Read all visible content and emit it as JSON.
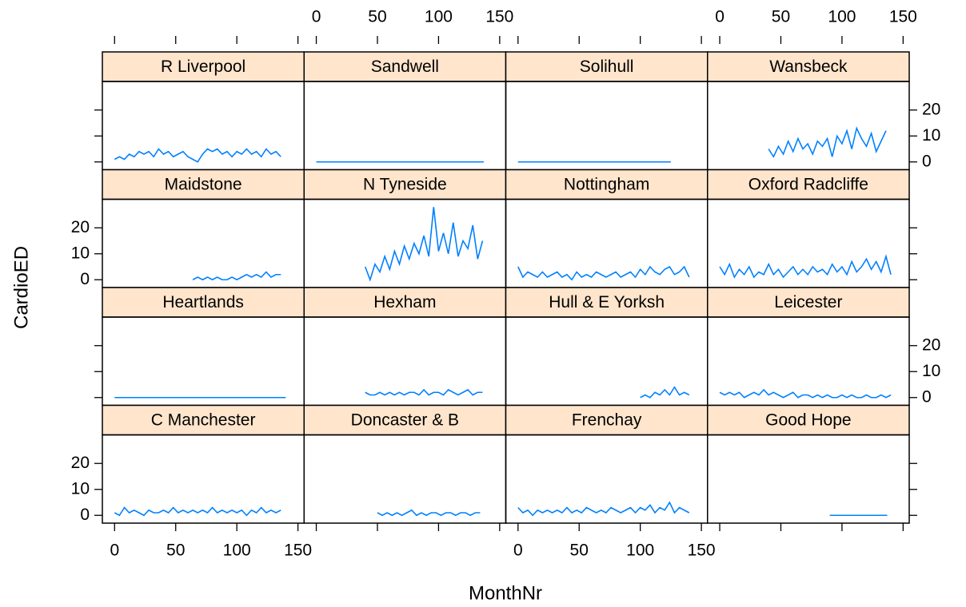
{
  "xlabel": "MonthNr",
  "ylabel": "CardioED",
  "chart_data": [
    {
      "type": "line",
      "title": "R Liverpool",
      "color": "#0080ff",
      "xlim": [
        -10,
        155
      ],
      "ylim": [
        -3,
        31
      ],
      "xticks": [
        0,
        50,
        100,
        150
      ],
      "yticks": [
        0,
        10,
        20
      ],
      "x": [
        0,
        4,
        8,
        12,
        16,
        20,
        24,
        28,
        32,
        36,
        40,
        44,
        48,
        52,
        56,
        60,
        64,
        68,
        72,
        76,
        80,
        84,
        88,
        92,
        96,
        100,
        104,
        108,
        112,
        116,
        120,
        124,
        128,
        132,
        136
      ],
      "values": [
        1,
        2,
        1,
        3,
        2,
        4,
        3,
        4,
        2,
        5,
        3,
        4,
        2,
        3,
        4,
        2,
        1,
        0,
        3,
        5,
        4,
        5,
        3,
        4,
        2,
        4,
        3,
        5,
        3,
        4,
        2,
        5,
        3,
        4,
        2
      ]
    },
    {
      "type": "line",
      "title": "Sandwell",
      "color": "#0080ff",
      "xlim": [
        -10,
        155
      ],
      "ylim": [
        -3,
        31
      ],
      "xticks": [
        0,
        50,
        100,
        150
      ],
      "yticks": [
        0,
        10,
        20
      ],
      "x": [
        0,
        137
      ],
      "values": [
        0,
        0
      ]
    },
    {
      "type": "line",
      "title": "Solihull",
      "color": "#0080ff",
      "xlim": [
        -10,
        155
      ],
      "ylim": [
        -3,
        31
      ],
      "xticks": [
        0,
        50,
        100,
        150
      ],
      "yticks": [
        0,
        10,
        20
      ],
      "x": [
        0,
        125
      ],
      "values": [
        0,
        0
      ]
    },
    {
      "type": "line",
      "title": "Wansbeck",
      "color": "#0080ff",
      "xlim": [
        -10,
        155
      ],
      "ylim": [
        -3,
        31
      ],
      "xticks": [
        0,
        50,
        100,
        150
      ],
      "yticks": [
        0,
        10,
        20
      ],
      "x": [
        40,
        44,
        48,
        52,
        56,
        60,
        64,
        68,
        72,
        76,
        80,
        84,
        88,
        92,
        96,
        100,
        104,
        108,
        112,
        116,
        120,
        124,
        128,
        132,
        136
      ],
      "values": [
        5,
        2,
        6,
        3,
        8,
        4,
        9,
        5,
        7,
        3,
        8,
        6,
        9,
        2,
        10,
        7,
        12,
        5,
        13,
        9,
        6,
        11,
        4,
        8,
        12
      ]
    },
    {
      "type": "line",
      "title": "Maidstone",
      "color": "#0080ff",
      "xlim": [
        -10,
        155
      ],
      "ylim": [
        -3,
        31
      ],
      "xticks": [
        0,
        50,
        100,
        150
      ],
      "yticks": [
        0,
        10,
        20
      ],
      "x": [
        64,
        68,
        72,
        76,
        80,
        84,
        88,
        92,
        96,
        100,
        104,
        108,
        112,
        116,
        120,
        124,
        128,
        132,
        136
      ],
      "values": [
        0,
        1,
        0,
        1,
        0,
        1,
        0,
        0,
        1,
        0,
        1,
        2,
        1,
        2,
        1,
        3,
        1,
        2,
        2
      ]
    },
    {
      "type": "line",
      "title": "N Tyneside",
      "color": "#0080ff",
      "xlim": [
        -10,
        155
      ],
      "ylim": [
        -3,
        31
      ],
      "xticks": [
        0,
        50,
        100,
        150
      ],
      "yticks": [
        0,
        10,
        20
      ],
      "x": [
        40,
        44,
        48,
        52,
        56,
        60,
        64,
        68,
        72,
        76,
        80,
        84,
        88,
        92,
        96,
        100,
        104,
        108,
        112,
        116,
        120,
        124,
        128,
        132,
        136
      ],
      "values": [
        5,
        0,
        6,
        3,
        9,
        4,
        11,
        6,
        13,
        8,
        14,
        10,
        17,
        9,
        28,
        11,
        18,
        10,
        22,
        9,
        15,
        12,
        21,
        8,
        15
      ]
    },
    {
      "type": "line",
      "title": "Nottingham",
      "color": "#0080ff",
      "xlim": [
        -10,
        155
      ],
      "ylim": [
        -3,
        31
      ],
      "xticks": [
        0,
        50,
        100,
        150
      ],
      "yticks": [
        0,
        10,
        20
      ],
      "x": [
        0,
        4,
        8,
        12,
        16,
        20,
        24,
        28,
        32,
        36,
        40,
        44,
        48,
        52,
        56,
        60,
        64,
        68,
        72,
        76,
        80,
        84,
        88,
        92,
        96,
        100,
        104,
        108,
        112,
        116,
        120,
        124,
        128,
        132,
        136,
        140
      ],
      "values": [
        5,
        1,
        3,
        2,
        1,
        3,
        1,
        2,
        3,
        1,
        2,
        0,
        3,
        1,
        2,
        1,
        3,
        2,
        1,
        2,
        3,
        1,
        2,
        3,
        1,
        4,
        2,
        5,
        3,
        2,
        4,
        5,
        2,
        3,
        5,
        1
      ]
    },
    {
      "type": "line",
      "title": "Oxford Radcliffe",
      "color": "#0080ff",
      "xlim": [
        -10,
        155
      ],
      "ylim": [
        -3,
        31
      ],
      "xticks": [
        0,
        50,
        100,
        150
      ],
      "yticks": [
        0,
        10,
        20
      ],
      "x": [
        0,
        4,
        8,
        12,
        16,
        20,
        24,
        28,
        32,
        36,
        40,
        44,
        48,
        52,
        56,
        60,
        64,
        68,
        72,
        76,
        80,
        84,
        88,
        92,
        96,
        100,
        104,
        108,
        112,
        116,
        120,
        124,
        128,
        132,
        136,
        140
      ],
      "values": [
        5,
        2,
        6,
        1,
        4,
        2,
        5,
        1,
        3,
        2,
        6,
        2,
        4,
        1,
        3,
        5,
        2,
        4,
        2,
        5,
        3,
        4,
        2,
        6,
        3,
        5,
        2,
        7,
        3,
        5,
        8,
        4,
        7,
        3,
        9,
        2
      ]
    },
    {
      "type": "line",
      "title": "Heartlands",
      "color": "#0080ff",
      "xlim": [
        -10,
        155
      ],
      "ylim": [
        -3,
        31
      ],
      "xticks": [
        0,
        50,
        100,
        150
      ],
      "yticks": [
        0,
        10,
        20
      ],
      "x": [
        0,
        140
      ],
      "values": [
        0,
        0
      ]
    },
    {
      "type": "line",
      "title": "Hexham",
      "color": "#0080ff",
      "xlim": [
        -10,
        155
      ],
      "ylim": [
        -3,
        31
      ],
      "xticks": [
        0,
        50,
        100,
        150
      ],
      "yticks": [
        0,
        10,
        20
      ],
      "x": [
        40,
        44,
        48,
        52,
        56,
        60,
        64,
        68,
        72,
        76,
        80,
        84,
        88,
        92,
        96,
        100,
        104,
        108,
        112,
        116,
        120,
        124,
        128,
        132,
        136
      ],
      "values": [
        2,
        1,
        1,
        2,
        1,
        2,
        1,
        2,
        1,
        2,
        2,
        1,
        3,
        1,
        2,
        2,
        1,
        3,
        2,
        1,
        2,
        3,
        1,
        2,
        2
      ]
    },
    {
      "type": "line",
      "title": "Hull & E Yorksh",
      "color": "#0080ff",
      "xlim": [
        -10,
        155
      ],
      "ylim": [
        -3,
        31
      ],
      "xticks": [
        0,
        50,
        100,
        150
      ],
      "yticks": [
        0,
        10,
        20
      ],
      "x": [
        100,
        104,
        108,
        112,
        116,
        120,
        124,
        128,
        132,
        136,
        140
      ],
      "values": [
        0,
        1,
        0,
        2,
        1,
        3,
        1,
        4,
        1,
        2,
        1
      ]
    },
    {
      "type": "line",
      "title": "Leicester",
      "color": "#0080ff",
      "xlim": [
        -10,
        155
      ],
      "ylim": [
        -3,
        31
      ],
      "xticks": [
        0,
        50,
        100,
        150
      ],
      "yticks": [
        0,
        10,
        20
      ],
      "x": [
        0,
        4,
        8,
        12,
        16,
        20,
        24,
        28,
        32,
        36,
        40,
        44,
        48,
        52,
        56,
        60,
        64,
        68,
        72,
        76,
        80,
        84,
        88,
        92,
        96,
        100,
        104,
        108,
        112,
        116,
        120,
        124,
        128,
        132,
        136,
        140
      ],
      "values": [
        2,
        1,
        2,
        1,
        2,
        0,
        1,
        2,
        1,
        3,
        1,
        2,
        1,
        0,
        1,
        2,
        0,
        1,
        1,
        0,
        1,
        0,
        1,
        0,
        0,
        1,
        0,
        1,
        0,
        0,
        1,
        0,
        0,
        1,
        0,
        1
      ]
    },
    {
      "type": "line",
      "title": "C Manchester",
      "color": "#0080ff",
      "xlim": [
        -10,
        155
      ],
      "ylim": [
        -3,
        31
      ],
      "xticks": [
        0,
        50,
        100,
        150
      ],
      "yticks": [
        0,
        10,
        20
      ],
      "x": [
        0,
        4,
        8,
        12,
        16,
        20,
        24,
        28,
        32,
        36,
        40,
        44,
        48,
        52,
        56,
        60,
        64,
        68,
        72,
        76,
        80,
        84,
        88,
        92,
        96,
        100,
        104,
        108,
        112,
        116,
        120,
        124,
        128,
        132,
        136
      ],
      "values": [
        1,
        0,
        3,
        1,
        2,
        1,
        0,
        2,
        1,
        1,
        2,
        1,
        3,
        1,
        2,
        1,
        2,
        1,
        2,
        1,
        3,
        1,
        2,
        1,
        2,
        1,
        2,
        0,
        2,
        1,
        3,
        1,
        2,
        1,
        2
      ]
    },
    {
      "type": "line",
      "title": "Doncaster & B",
      "color": "#0080ff",
      "xlim": [
        -10,
        155
      ],
      "ylim": [
        -3,
        31
      ],
      "xticks": [
        0,
        50,
        100,
        150
      ],
      "yticks": [
        0,
        10,
        20
      ],
      "x": [
        50,
        54,
        58,
        62,
        66,
        70,
        74,
        78,
        82,
        86,
        90,
        94,
        98,
        102,
        106,
        110,
        114,
        118,
        122,
        126,
        130,
        134
      ],
      "values": [
        1,
        0,
        1,
        0,
        1,
        0,
        1,
        2,
        0,
        1,
        0,
        1,
        1,
        0,
        1,
        1,
        0,
        1,
        1,
        0,
        1,
        1
      ]
    },
    {
      "type": "line",
      "title": "Frenchay",
      "color": "#0080ff",
      "xlim": [
        -10,
        155
      ],
      "ylim": [
        -3,
        31
      ],
      "xticks": [
        0,
        50,
        100,
        150
      ],
      "yticks": [
        0,
        10,
        20
      ],
      "x": [
        0,
        4,
        8,
        12,
        16,
        20,
        24,
        28,
        32,
        36,
        40,
        44,
        48,
        52,
        56,
        60,
        64,
        68,
        72,
        76,
        80,
        84,
        88,
        92,
        96,
        100,
        104,
        108,
        112,
        116,
        120,
        124,
        128,
        132,
        136,
        140
      ],
      "values": [
        3,
        1,
        2,
        0,
        2,
        1,
        2,
        1,
        2,
        1,
        3,
        1,
        2,
        1,
        3,
        2,
        1,
        2,
        1,
        3,
        2,
        1,
        2,
        3,
        1,
        3,
        2,
        4,
        1,
        3,
        2,
        5,
        1,
        3,
        2,
        1
      ]
    },
    {
      "type": "line",
      "title": "Good Hope",
      "color": "#0080ff",
      "xlim": [
        -10,
        155
      ],
      "ylim": [
        -3,
        31
      ],
      "xticks": [
        0,
        50,
        100,
        150
      ],
      "yticks": [
        0,
        10,
        20
      ],
      "x": [
        90,
        137
      ],
      "values": [
        0,
        0
      ]
    }
  ]
}
